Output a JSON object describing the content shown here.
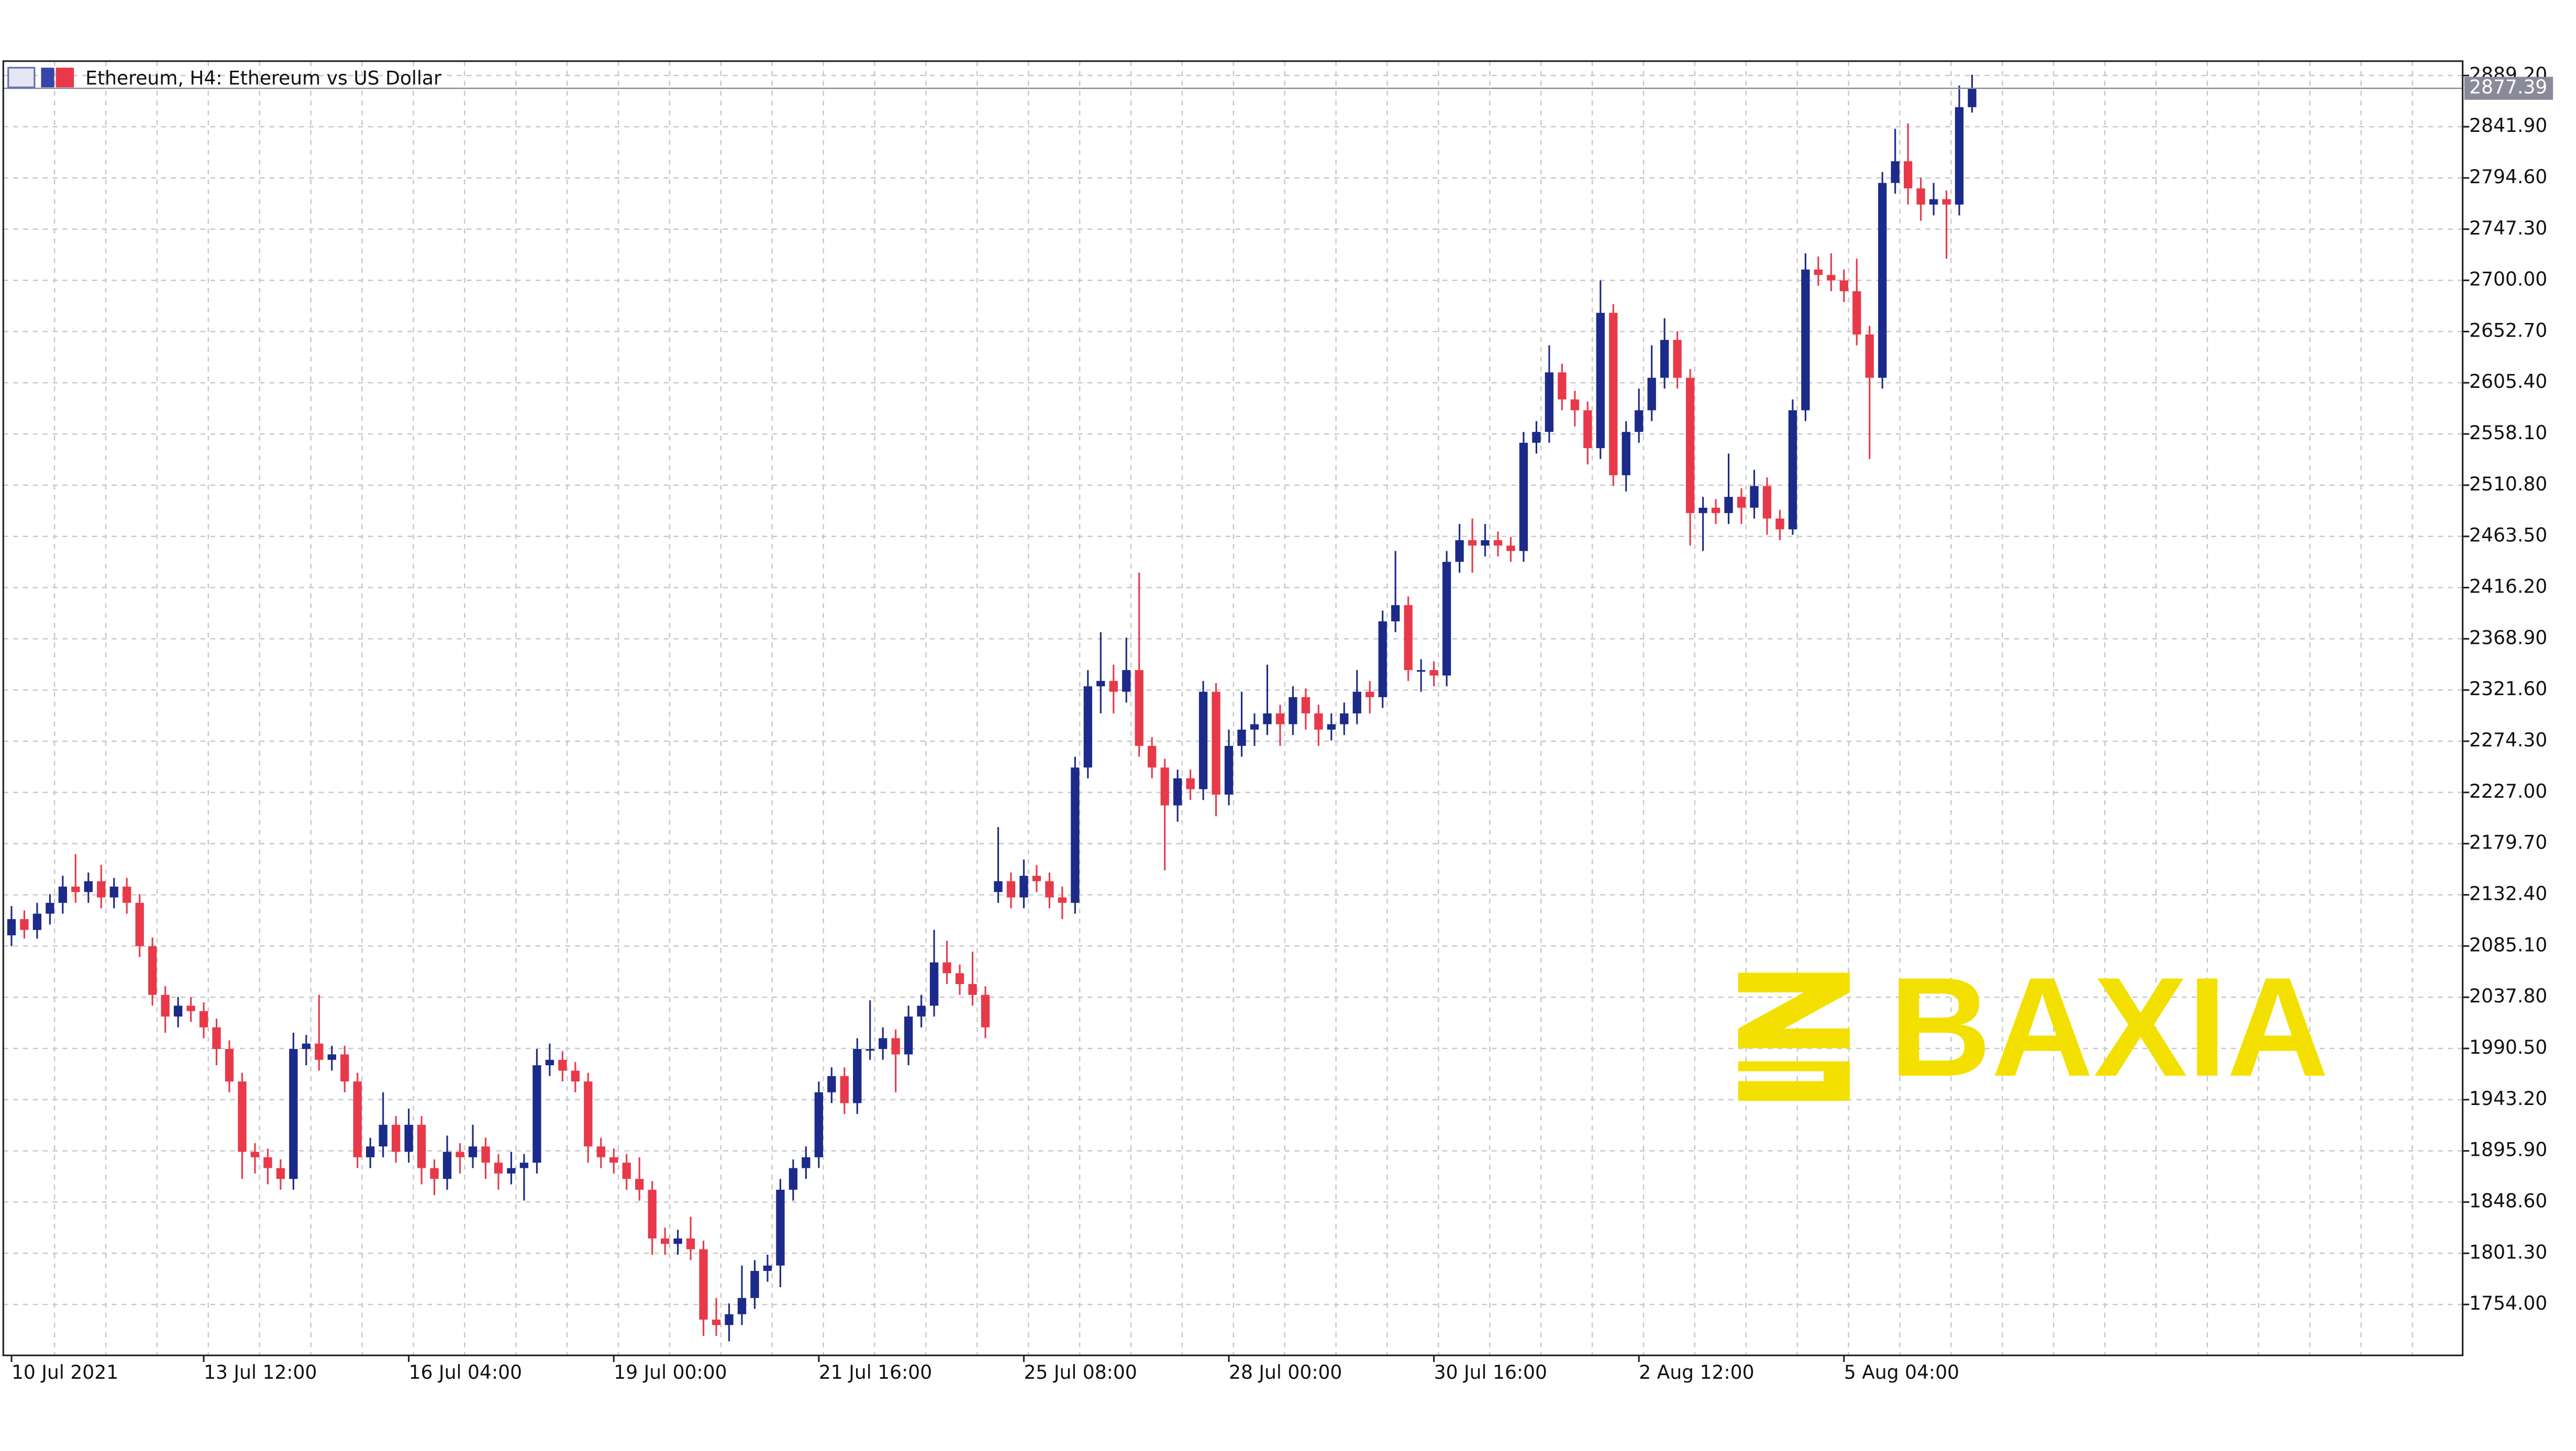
{
  "chart_data": {
    "type": "candlestick",
    "title": "Ethereum, H4:  Ethereum vs US Dollar",
    "watermark": "BAXIA",
    "up_color": "#1c2a8a",
    "down_color": "#e8394a",
    "grid": true,
    "last_price": 2877.39,
    "ylim": [
      1707,
      2902.5
    ],
    "yticks": [
      {
        "value": 1754,
        "label": "1754.00"
      },
      {
        "value": 1801.3,
        "label": "1801.30"
      },
      {
        "value": 1848.6,
        "label": "1848.60"
      },
      {
        "value": 1895.9,
        "label": "1895.90"
      },
      {
        "value": 1943.2,
        "label": "1943.20"
      },
      {
        "value": 1990.5,
        "label": "1990.50"
      },
      {
        "value": 2037.8,
        "label": "2037.80"
      },
      {
        "value": 2085.1,
        "label": "2085.10"
      },
      {
        "value": 2132.4,
        "label": "2132.40"
      },
      {
        "value": 2179.7,
        "label": "2179.70"
      },
      {
        "value": 2227,
        "label": "2227.00"
      },
      {
        "value": 2274.3,
        "label": "2274.30"
      },
      {
        "value": 2321.6,
        "label": "2321.60"
      },
      {
        "value": 2368.9,
        "label": "2368.90"
      },
      {
        "value": 2416.2,
        "label": "2416.20"
      },
      {
        "value": 2463.5,
        "label": "2463.50"
      },
      {
        "value": 2510.8,
        "label": "2510.80"
      },
      {
        "value": 2558.1,
        "label": "2558.10"
      },
      {
        "value": 2605.4,
        "label": "2605.40"
      },
      {
        "value": 2652.7,
        "label": "2652.70"
      },
      {
        "value": 2700,
        "label": "2700.00"
      },
      {
        "value": 2747.3,
        "label": "2747.30"
      },
      {
        "value": 2794.6,
        "label": "2794.60"
      },
      {
        "value": 2841.9,
        "label": "2841.90"
      },
      {
        "value": 2889.2,
        "label": "2889.20"
      }
    ],
    "categories": [
      "10 Jul 2021",
      null,
      null,
      null,
      null,
      null,
      null,
      null,
      null,
      null,
      null,
      null,
      null,
      null,
      null,
      "13 Jul 12:00",
      null,
      null,
      null,
      null,
      null,
      null,
      null,
      null,
      null,
      null,
      null,
      null,
      null,
      null,
      null,
      "16 Jul 04:00",
      null,
      null,
      null,
      null,
      null,
      null,
      null,
      null,
      null,
      null,
      null,
      null,
      null,
      null,
      null,
      "19 Jul 00:00",
      null,
      null,
      null,
      null,
      null,
      null,
      null,
      null,
      null,
      null,
      null,
      null,
      null,
      null,
      null,
      "21 Jul 16:00",
      null,
      null,
      null,
      null,
      null,
      null,
      null,
      null,
      null,
      null,
      null,
      null,
      null,
      null,
      null,
      "25 Jul 08:00",
      null,
      null,
      null,
      null,
      null,
      null,
      null,
      null,
      null,
      null,
      null,
      null,
      null,
      null,
      null,
      "28 Jul 00:00",
      null,
      null,
      null,
      null,
      null,
      null,
      null,
      null,
      null,
      null,
      null,
      null,
      null,
      null,
      null,
      "30 Jul 16:00",
      null,
      null,
      null,
      null,
      null,
      null,
      null,
      null,
      null,
      null,
      null,
      null,
      null,
      null,
      null,
      "2 Aug 12:00",
      null,
      null,
      null,
      null,
      null,
      null,
      null,
      null,
      null,
      null,
      null,
      null,
      null,
      null,
      null,
      "5 Aug 04:00",
      null,
      null,
      null,
      null,
      null,
      null,
      null,
      null,
      null,
      null
    ],
    "candles": [
      [
        2095,
        2122,
        2085,
        2110
      ],
      [
        2110,
        2118,
        2092,
        2100
      ],
      [
        2100,
        2125,
        2092,
        2115
      ],
      [
        2115,
        2133,
        2105,
        2125
      ],
      [
        2125,
        2150,
        2115,
        2140
      ],
      [
        2140,
        2170,
        2125,
        2135
      ],
      [
        2135,
        2153,
        2125,
        2145
      ],
      [
        2145,
        2160,
        2120,
        2130
      ],
      [
        2130,
        2148,
        2120,
        2140
      ],
      [
        2140,
        2148,
        2115,
        2125
      ],
      [
        2125,
        2133,
        2075,
        2085
      ],
      [
        2085,
        2093,
        2030,
        2040
      ],
      [
        2040,
        2048,
        2005,
        2020
      ],
      [
        2020,
        2038,
        2010,
        2030
      ],
      [
        2030,
        2038,
        2015,
        2025
      ],
      [
        2025,
        2033,
        2000,
        2010
      ],
      [
        2010,
        2018,
        1975,
        1990
      ],
      [
        1990,
        1998,
        1950,
        1960
      ],
      [
        1960,
        1968,
        1870,
        1895
      ],
      [
        1895,
        1903,
        1875,
        1890
      ],
      [
        1890,
        1898,
        1865,
        1880
      ],
      [
        1880,
        1888,
        1860,
        1870
      ],
      [
        1870,
        2005,
        1860,
        1990
      ],
      [
        1990,
        2003,
        1975,
        1995
      ],
      [
        1995,
        2040,
        1970,
        1980
      ],
      [
        1980,
        1993,
        1970,
        1985
      ],
      [
        1985,
        1993,
        1950,
        1960
      ],
      [
        1960,
        1968,
        1880,
        1890
      ],
      [
        1890,
        1908,
        1880,
        1900
      ],
      [
        1900,
        1950,
        1890,
        1920
      ],
      [
        1920,
        1928,
        1885,
        1895
      ],
      [
        1895,
        1935,
        1885,
        1920
      ],
      [
        1920,
        1928,
        1865,
        1880
      ],
      [
        1880,
        1888,
        1855,
        1870
      ],
      [
        1870,
        1910,
        1860,
        1895
      ],
      [
        1895,
        1903,
        1875,
        1890
      ],
      [
        1890,
        1920,
        1880,
        1900
      ],
      [
        1900,
        1908,
        1870,
        1885
      ],
      [
        1885,
        1893,
        1860,
        1875
      ],
      [
        1875,
        1895,
        1865,
        1880
      ],
      [
        1880,
        1893,
        1850,
        1885
      ],
      [
        1885,
        1990,
        1875,
        1975
      ],
      [
        1975,
        1995,
        1965,
        1980
      ],
      [
        1980,
        1988,
        1960,
        1970
      ],
      [
        1970,
        1978,
        1950,
        1960
      ],
      [
        1960,
        1968,
        1885,
        1900
      ],
      [
        1900,
        1908,
        1880,
        1890
      ],
      [
        1890,
        1898,
        1875,
        1885
      ],
      [
        1885,
        1893,
        1860,
        1870
      ],
      [
        1870,
        1890,
        1850,
        1860
      ],
      [
        1860,
        1868,
        1800,
        1815
      ],
      [
        1815,
        1825,
        1800,
        1810
      ],
      [
        1810,
        1823,
        1800,
        1815
      ],
      [
        1815,
        1835,
        1795,
        1805
      ],
      [
        1805,
        1813,
        1725,
        1740
      ],
      [
        1740,
        1760,
        1725,
        1735
      ],
      [
        1735,
        1755,
        1720,
        1745
      ],
      [
        1745,
        1790,
        1735,
        1760
      ],
      [
        1760,
        1795,
        1750,
        1785
      ],
      [
        1785,
        1800,
        1775,
        1790
      ],
      [
        1790,
        1870,
        1770,
        1860
      ],
      [
        1860,
        1888,
        1850,
        1880
      ],
      [
        1880,
        1900,
        1870,
        1890
      ],
      [
        1890,
        1960,
        1880,
        1950
      ],
      [
        1950,
        1973,
        1940,
        1965
      ],
      [
        1965,
        1973,
        1930,
        1940
      ],
      [
        1940,
        2000,
        1930,
        1990
      ],
      [
        1990,
        2035,
        1980,
        1990
      ],
      [
        1990,
        2010,
        1980,
        2000
      ],
      [
        2000,
        2008,
        1950,
        1985
      ],
      [
        1985,
        2030,
        1975,
        2020
      ],
      [
        2020,
        2040,
        2010,
        2030
      ],
      [
        2030,
        2100,
        2020,
        2070
      ],
      [
        2070,
        2090,
        2050,
        2060
      ],
      [
        2060,
        2068,
        2040,
        2050
      ],
      [
        2050,
        2080,
        2030,
        2040
      ],
      [
        2040,
        2048,
        2000,
        2010
      ],
      [
        2135,
        2195,
        2125,
        2145
      ],
      [
        2145,
        2153,
        2120,
        2130
      ],
      [
        2130,
        2165,
        2120,
        2150
      ],
      [
        2150,
        2160,
        2135,
        2145
      ],
      [
        2145,
        2153,
        2120,
        2130
      ],
      [
        2130,
        2140,
        2110,
        2125
      ],
      [
        2125,
        2260,
        2115,
        2250
      ],
      [
        2250,
        2340,
        2240,
        2325
      ],
      [
        2325,
        2375,
        2300,
        2330
      ],
      [
        2330,
        2345,
        2300,
        2320
      ],
      [
        2320,
        2370,
        2310,
        2340
      ],
      [
        2340,
        2430,
        2260,
        2270
      ],
      [
        2270,
        2278,
        2240,
        2250
      ],
      [
        2250,
        2258,
        2155,
        2215
      ],
      [
        2215,
        2248,
        2200,
        2240
      ],
      [
        2240,
        2248,
        2220,
        2230
      ],
      [
        2230,
        2330,
        2220,
        2320
      ],
      [
        2320,
        2328,
        2205,
        2225
      ],
      [
        2225,
        2285,
        2215,
        2270
      ],
      [
        2270,
        2320,
        2260,
        2285
      ],
      [
        2285,
        2300,
        2270,
        2290
      ],
      [
        2290,
        2345,
        2280,
        2300
      ],
      [
        2300,
        2308,
        2270,
        2290
      ],
      [
        2290,
        2325,
        2280,
        2315
      ],
      [
        2315,
        2323,
        2285,
        2300
      ],
      [
        2300,
        2308,
        2270,
        2285
      ],
      [
        2285,
        2300,
        2275,
        2290
      ],
      [
        2290,
        2310,
        2280,
        2300
      ],
      [
        2300,
        2340,
        2290,
        2320
      ],
      [
        2320,
        2330,
        2300,
        2315
      ],
      [
        2315,
        2395,
        2305,
        2385
      ],
      [
        2385,
        2450,
        2375,
        2400
      ],
      [
        2400,
        2408,
        2330,
        2340
      ],
      [
        2340,
        2350,
        2320,
        2340
      ],
      [
        2340,
        2348,
        2325,
        2335
      ],
      [
        2335,
        2450,
        2325,
        2440
      ],
      [
        2440,
        2475,
        2430,
        2460
      ],
      [
        2460,
        2480,
        2430,
        2455
      ],
      [
        2455,
        2475,
        2445,
        2460
      ],
      [
        2460,
        2468,
        2445,
        2455
      ],
      [
        2455,
        2463,
        2440,
        2450
      ],
      [
        2450,
        2560,
        2440,
        2550
      ],
      [
        2550,
        2570,
        2540,
        2560
      ],
      [
        2560,
        2640,
        2550,
        2615
      ],
      [
        2615,
        2623,
        2580,
        2590
      ],
      [
        2590,
        2598,
        2565,
        2580
      ],
      [
        2580,
        2588,
        2530,
        2545
      ],
      [
        2545,
        2700,
        2535,
        2670
      ],
      [
        2670,
        2678,
        2510,
        2520
      ],
      [
        2520,
        2570,
        2505,
        2560
      ],
      [
        2560,
        2600,
        2550,
        2580
      ],
      [
        2580,
        2640,
        2570,
        2610
      ],
      [
        2610,
        2665,
        2600,
        2645
      ],
      [
        2645,
        2653,
        2600,
        2610
      ],
      [
        2610,
        2618,
        2455,
        2485
      ],
      [
        2485,
        2500,
        2450,
        2490
      ],
      [
        2490,
        2498,
        2475,
        2485
      ],
      [
        2485,
        2540,
        2475,
        2500
      ],
      [
        2500,
        2508,
        2475,
        2490
      ],
      [
        2490,
        2525,
        2480,
        2510
      ],
      [
        2510,
        2518,
        2465,
        2480
      ],
      [
        2480,
        2488,
        2460,
        2470
      ],
      [
        2470,
        2590,
        2465,
        2580
      ],
      [
        2580,
        2725,
        2570,
        2710
      ],
      [
        2710,
        2722,
        2695,
        2705
      ],
      [
        2705,
        2725,
        2690,
        2700
      ],
      [
        2700,
        2710,
        2680,
        2690
      ],
      [
        2690,
        2720,
        2640,
        2650
      ],
      [
        2650,
        2658,
        2535,
        2610
      ],
      [
        2610,
        2800,
        2600,
        2790
      ],
      [
        2790,
        2840,
        2780,
        2810
      ],
      [
        2810,
        2845,
        2770,
        2785
      ],
      [
        2785,
        2795,
        2755,
        2770
      ],
      [
        2770,
        2790,
        2760,
        2775
      ],
      [
        2775,
        2783,
        2720,
        2770
      ],
      [
        2770,
        2880,
        2760,
        2860
      ],
      [
        2860,
        2890,
        2855,
        2877.39
      ]
    ]
  }
}
